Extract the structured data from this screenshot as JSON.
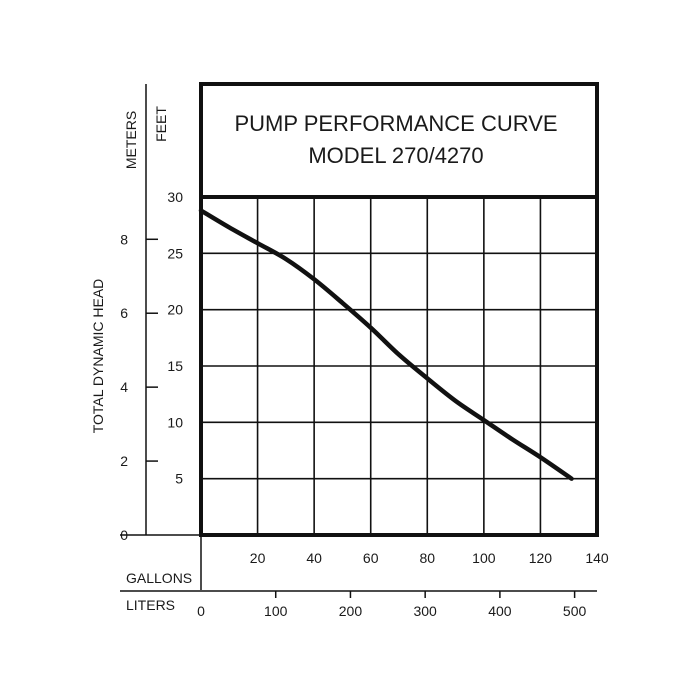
{
  "chart_data": {
    "type": "line",
    "title_line1": "PUMP PERFORMANCE CURVE",
    "title_line2": "MODEL 270/4270",
    "ylabel": "TOTAL DYNAMIC HEAD",
    "y_unit_meters": "METERS",
    "y_unit_feet": "FEET",
    "x_unit_gallons": "GALLONS",
    "x_unit_liters": "LITERS",
    "feet_ticks": [
      "5",
      "10",
      "15",
      "20",
      "25",
      "30"
    ],
    "meters_ticks": [
      "0",
      "2",
      "4",
      "6",
      "8"
    ],
    "gallons_ticks": [
      "20",
      "40",
      "60",
      "80",
      "100",
      "120",
      "140"
    ],
    "liters_ticks": [
      "0",
      "100",
      "200",
      "300",
      "400",
      "500"
    ],
    "xlim_gallons": [
      0,
      140
    ],
    "ylim_feet": [
      0,
      30
    ],
    "grid": true,
    "series": [
      {
        "x": [
          0,
          10,
          20,
          30,
          40,
          50,
          60,
          70,
          80,
          90,
          100,
          110,
          120,
          131
        ],
        "y": [
          28.8,
          27.3,
          25.9,
          24.5,
          22.7,
          20.6,
          18.4,
          16.0,
          13.9,
          11.9,
          10.2,
          8.5,
          6.9,
          5.0
        ]
      }
    ]
  }
}
